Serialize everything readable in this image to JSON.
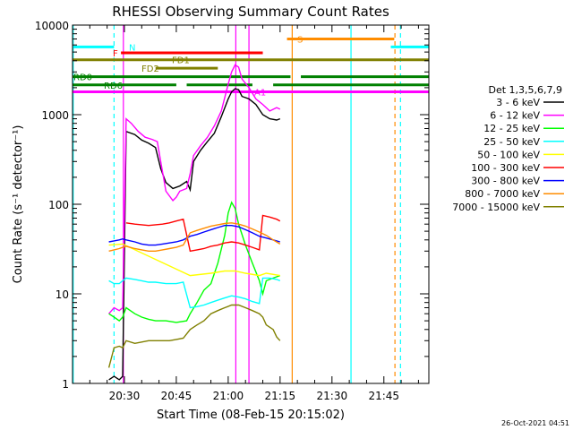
{
  "chart_data": {
    "type": "line",
    "title": "RHESSI Observing Summary Count Rates",
    "xlabel": "Start Time (08-Feb-15 20:15:02)",
    "ylabel": "Count Rate (s⁻¹ detector⁻¹)",
    "x_unit": "minutes after 20:15:02",
    "xlim": [
      0,
      103
    ],
    "ylim": [
      1,
      10000
    ],
    "yscale": "log",
    "x_ticks": [
      {
        "x": 15,
        "label": "20:30"
      },
      {
        "x": 30,
        "label": "20:45"
      },
      {
        "x": 45,
        "label": "21:00"
      },
      {
        "x": 60,
        "label": "21:15"
      },
      {
        "x": 75,
        "label": "21:30"
      },
      {
        "x": 90,
        "label": "21:45"
      }
    ],
    "y_ticks": [
      {
        "v": 1,
        "label": "1"
      },
      {
        "v": 10,
        "label": "10"
      },
      {
        "v": 100,
        "label": "100"
      },
      {
        "v": 1000,
        "label": "1000"
      },
      {
        "v": 10000,
        "label": "10000"
      }
    ],
    "legend_title": "Det 1,3,5,6,7,9",
    "legend_position": "right",
    "timestamp": "26-Oct-2021 04:51",
    "series": [
      {
        "name": "3 - 6 keV",
        "color": "#000000",
        "points": [
          [
            10.5,
            1.1
          ],
          [
            12,
            1.2
          ],
          [
            13.5,
            1.1
          ],
          [
            14.5,
            1.2
          ],
          [
            15.5,
            650
          ],
          [
            18,
            600
          ],
          [
            20,
            520
          ],
          [
            22,
            480
          ],
          [
            24,
            430
          ],
          [
            25.5,
            250
          ],
          [
            27,
            175
          ],
          [
            29,
            150
          ],
          [
            31,
            160
          ],
          [
            33,
            180
          ],
          [
            34,
            145
          ],
          [
            35,
            300
          ],
          [
            37,
            400
          ],
          [
            39,
            500
          ],
          [
            41,
            620
          ],
          [
            43,
            950
          ],
          [
            45,
            1500
          ],
          [
            46,
            1800
          ],
          [
            47,
            1950
          ],
          [
            48,
            1900
          ],
          [
            49,
            1600
          ],
          [
            51,
            1500
          ],
          [
            53,
            1300
          ],
          [
            55,
            1000
          ],
          [
            57,
            900
          ],
          [
            59,
            870
          ],
          [
            60,
            900
          ]
        ]
      },
      {
        "name": "6 - 12 keV",
        "color": "#ff00ff",
        "points": [
          [
            10.5,
            6
          ],
          [
            12,
            7
          ],
          [
            13.5,
            6.5
          ],
          [
            14.5,
            7
          ],
          [
            15.5,
            900
          ],
          [
            17,
            800
          ],
          [
            19,
            650
          ],
          [
            21,
            560
          ],
          [
            23,
            530
          ],
          [
            24.5,
            500
          ],
          [
            25.5,
            300
          ],
          [
            27,
            140
          ],
          [
            29,
            110
          ],
          [
            30,
            120
          ],
          [
            31,
            140
          ],
          [
            33,
            150
          ],
          [
            34,
            220
          ],
          [
            35,
            350
          ],
          [
            37,
            450
          ],
          [
            39,
            560
          ],
          [
            41,
            750
          ],
          [
            43,
            1100
          ],
          [
            45,
            2200
          ],
          [
            46,
            3000
          ],
          [
            47,
            3600
          ],
          [
            48,
            3400
          ],
          [
            49,
            2500
          ],
          [
            51,
            2000
          ],
          [
            53,
            1500
          ],
          [
            55,
            1300
          ],
          [
            57,
            1100
          ],
          [
            59,
            1200
          ],
          [
            60,
            1150
          ]
        ]
      },
      {
        "name": "12 - 25 keV",
        "color": "#00ff00",
        "points": [
          [
            10.5,
            6
          ],
          [
            12,
            5.5
          ],
          [
            13.5,
            5
          ],
          [
            14.5,
            5.5
          ],
          [
            15.5,
            7
          ],
          [
            18,
            6
          ],
          [
            20,
            5.5
          ],
          [
            22,
            5.2
          ],
          [
            24,
            5
          ],
          [
            27,
            5
          ],
          [
            30,
            4.8
          ],
          [
            33,
            5
          ],
          [
            34,
            6
          ],
          [
            36,
            8
          ],
          [
            38,
            11
          ],
          [
            40,
            13
          ],
          [
            42,
            22
          ],
          [
            44,
            45
          ],
          [
            45,
            80
          ],
          [
            46,
            105
          ],
          [
            47,
            90
          ],
          [
            48,
            60
          ],
          [
            50,
            35
          ],
          [
            52,
            22
          ],
          [
            54,
            14
          ],
          [
            55,
            10
          ],
          [
            56,
            14
          ],
          [
            58,
            15
          ],
          [
            60,
            16
          ]
        ]
      },
      {
        "name": "25 - 50 keV",
        "color": "#00ffff",
        "points": [
          [
            10.5,
            14
          ],
          [
            12,
            13
          ],
          [
            13.5,
            13
          ],
          [
            14.5,
            14
          ],
          [
            15.5,
            15
          ],
          [
            18,
            14.5
          ],
          [
            20,
            14
          ],
          [
            22,
            13.5
          ],
          [
            24,
            13.5
          ],
          [
            27,
            13
          ],
          [
            30,
            13
          ],
          [
            32,
            13.5
          ],
          [
            34,
            7
          ],
          [
            36,
            7.2
          ],
          [
            38,
            7.5
          ],
          [
            40,
            8
          ],
          [
            42,
            8.5
          ],
          [
            44,
            9
          ],
          [
            46,
            9.5
          ],
          [
            48,
            9.2
          ],
          [
            50,
            8.8
          ],
          [
            52,
            8.2
          ],
          [
            54,
            7.8
          ],
          [
            55,
            15
          ],
          [
            57,
            15
          ],
          [
            59,
            14.5
          ],
          [
            60,
            14
          ]
        ]
      },
      {
        "name": "50 - 100 keV",
        "color": "#ffff00",
        "points": [
          [
            10.5,
            35
          ],
          [
            14.5,
            36
          ],
          [
            34,
            16
          ],
          [
            40,
            17
          ],
          [
            44,
            18
          ],
          [
            47,
            18
          ],
          [
            50,
            17
          ],
          [
            54,
            16
          ],
          [
            56,
            17
          ],
          [
            60,
            16
          ]
        ]
      },
      {
        "name": "100 - 300 keV",
        "color": "#ff0000",
        "points": [
          [
            15.5,
            62
          ],
          [
            18,
            60
          ],
          [
            20,
            59
          ],
          [
            22,
            58
          ],
          [
            24,
            59
          ],
          [
            26,
            60
          ],
          [
            28,
            62
          ],
          [
            30,
            65
          ],
          [
            32,
            68
          ],
          [
            34,
            30
          ],
          [
            36,
            31
          ],
          [
            38,
            32
          ],
          [
            40,
            34
          ],
          [
            42,
            35
          ],
          [
            44,
            37
          ],
          [
            46,
            38
          ],
          [
            48,
            37
          ],
          [
            50,
            35
          ],
          [
            52,
            33
          ],
          [
            54,
            31
          ],
          [
            55,
            75
          ],
          [
            57,
            72
          ],
          [
            59,
            68
          ],
          [
            60,
            65
          ]
        ]
      },
      {
        "name": "300 - 800 keV",
        "color": "#0000ff",
        "points": [
          [
            10.5,
            38
          ],
          [
            12,
            39
          ],
          [
            13.5,
            40
          ],
          [
            14.5,
            41
          ],
          [
            15.5,
            40
          ],
          [
            18,
            38
          ],
          [
            20,
            36
          ],
          [
            22,
            35
          ],
          [
            24,
            35
          ],
          [
            26,
            36
          ],
          [
            28,
            37
          ],
          [
            30,
            38
          ],
          [
            32,
            40
          ],
          [
            34,
            44
          ],
          [
            36,
            46
          ],
          [
            38,
            49
          ],
          [
            40,
            52
          ],
          [
            42,
            55
          ],
          [
            44,
            58
          ],
          [
            46,
            58
          ],
          [
            48,
            56
          ],
          [
            50,
            52
          ],
          [
            52,
            48
          ],
          [
            54,
            44
          ],
          [
            56,
            42
          ],
          [
            58,
            40
          ],
          [
            60,
            38
          ]
        ]
      },
      {
        "name": "800 - 7000 keV",
        "color": "#ff8c00",
        "points": [
          [
            10.5,
            30
          ],
          [
            12,
            31
          ],
          [
            13.5,
            32
          ],
          [
            14.5,
            33
          ],
          [
            15.5,
            34
          ],
          [
            18,
            32
          ],
          [
            20,
            31
          ],
          [
            22,
            30
          ],
          [
            24,
            30
          ],
          [
            26,
            31
          ],
          [
            28,
            32
          ],
          [
            30,
            33
          ],
          [
            32,
            35
          ],
          [
            34,
            48
          ],
          [
            36,
            51
          ],
          [
            38,
            54
          ],
          [
            40,
            57
          ],
          [
            42,
            59
          ],
          [
            44,
            61
          ],
          [
            46,
            62
          ],
          [
            48,
            60
          ],
          [
            50,
            57
          ],
          [
            52,
            53
          ],
          [
            54,
            49
          ],
          [
            56,
            45
          ],
          [
            58,
            40
          ],
          [
            60,
            36
          ]
        ]
      },
      {
        "name": "7000 - 15000 keV",
        "color": "#808000",
        "points": [
          [
            10.5,
            1.5
          ],
          [
            12,
            2.5
          ],
          [
            13.5,
            2.6
          ],
          [
            14.5,
            2.5
          ],
          [
            15.5,
            3
          ],
          [
            18,
            2.8
          ],
          [
            20,
            2.9
          ],
          [
            22,
            3
          ],
          [
            24,
            3
          ],
          [
            26,
            3
          ],
          [
            28,
            3
          ],
          [
            30,
            3.1
          ],
          [
            32,
            3.2
          ],
          [
            34,
            4
          ],
          [
            36,
            4.5
          ],
          [
            38,
            5
          ],
          [
            40,
            6
          ],
          [
            42,
            6.5
          ],
          [
            44,
            7
          ],
          [
            46,
            7.5
          ],
          [
            48,
            7.5
          ],
          [
            50,
            7
          ],
          [
            52,
            6.5
          ],
          [
            54,
            6
          ],
          [
            55,
            5.5
          ],
          [
            56,
            4.5
          ],
          [
            58,
            4
          ],
          [
            59,
            3.3
          ],
          [
            60,
            3
          ]
        ]
      }
    ],
    "flag_bars": [
      {
        "label": "N",
        "color": "#00ffff",
        "y_value": 5700,
        "segments": [
          [
            0,
            12
          ],
          [
            92,
            103
          ]
        ]
      },
      {
        "label": "S",
        "color": "#ff8c00",
        "y_value": 7000,
        "segments": [
          [
            62,
            93
          ]
        ]
      },
      {
        "label": "F",
        "color": "#ff0000",
        "y_value": 4900,
        "segments": [
          [
            14,
            55
          ]
        ]
      },
      {
        "label": "FD1",
        "color": "#808000",
        "y_value": 4100,
        "segments": [
          [
            0,
            103
          ]
        ]
      },
      {
        "label": "FD2",
        "color": "#808000",
        "y_value": 3300,
        "segments": [
          [
            24,
            42
          ]
        ]
      },
      {
        "label": "RD0",
        "color": "#008000",
        "y_value": 2650,
        "segments": [
          [
            0,
            63
          ],
          [
            66,
            103
          ]
        ]
      },
      {
        "label": "RD6",
        "color": "#008000",
        "y_value": 2150,
        "segments": [
          [
            0,
            30
          ],
          [
            33,
            52
          ],
          [
            58,
            103
          ]
        ]
      },
      {
        "label": "A1",
        "color": "#ff00ff",
        "y_value": 1800,
        "segments": [
          [
            0,
            103
          ]
        ]
      }
    ],
    "vertical_markers": [
      {
        "x": 0.2,
        "color": "#00ffff",
        "style": "solid"
      },
      {
        "x": 12,
        "color": "#00ffff",
        "style": "dashed"
      },
      {
        "x": 14.7,
        "color": "#ff00ff",
        "style": "solid"
      },
      {
        "x": 47.2,
        "color": "#ff00ff",
        "style": "solid"
      },
      {
        "x": 51,
        "color": "#ff00ff",
        "style": "solid"
      },
      {
        "x": 63.5,
        "color": "#ff8c00",
        "style": "solid"
      },
      {
        "x": 80.5,
        "color": "#00ffff",
        "style": "solid"
      },
      {
        "x": 93.2,
        "color": "#ff8c00",
        "style": "dashed"
      },
      {
        "x": 94.8,
        "color": "#00ffff",
        "style": "dashed"
      }
    ]
  }
}
